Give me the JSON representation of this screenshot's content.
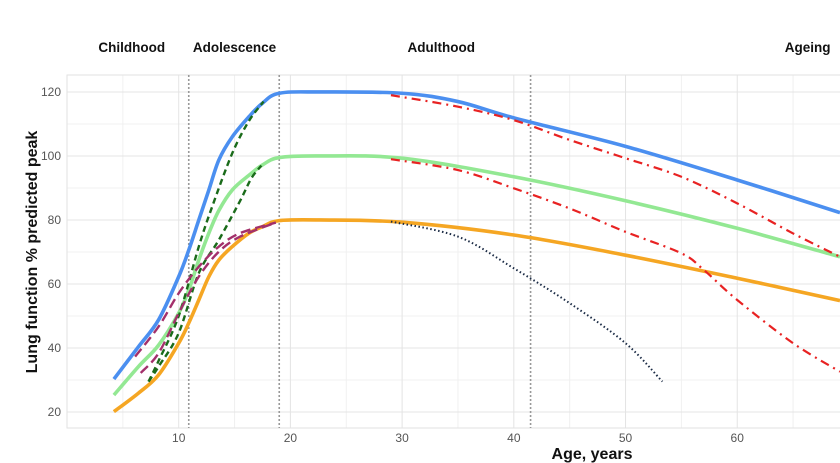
{
  "chart_data": {
    "type": "line",
    "title": "",
    "xlabel": "Age, years",
    "ylabel": "Lung function % predicted peak",
    "xlim": [
      0,
      69.2
    ],
    "ylim": [
      15,
      125.3
    ],
    "xticks": [
      10,
      20,
      30,
      40,
      50,
      60
    ],
    "yticks": [
      20,
      40,
      60,
      80,
      100,
      120
    ],
    "grid": true,
    "legend": "none",
    "phases": [
      {
        "label": "Childhood",
        "x": 5.8
      },
      {
        "label": "Adolescence",
        "x": 15
      },
      {
        "label": "Adulthood",
        "x": 33.5
      },
      {
        "label": "Ageing",
        "x": 66.3
      }
    ],
    "phase_boundaries": [
      10.9,
      19,
      41.5
    ],
    "series": [
      {
        "color": "#4b8ff0",
        "style": "solid",
        "x": [
          4.2,
          6.4,
          8.2,
          10,
          10.9,
          11.8,
          12.7,
          13.6,
          14.8,
          16.3,
          17.5,
          19,
          22.6,
          30,
          35,
          40,
          50,
          60,
          69.2
        ],
        "y": [
          30.3,
          40.4,
          48.8,
          62.3,
          70.6,
          80,
          89.4,
          98.8,
          106,
          112.3,
          116.5,
          119.6,
          120,
          119.6,
          117,
          111.9,
          103,
          92.5,
          82.3
        ]
      },
      {
        "color": "#93e893",
        "style": "solid",
        "x": [
          4.2,
          6.4,
          8.2,
          10,
          10.9,
          11.8,
          12.7,
          13.6,
          14.8,
          16.3,
          17.5,
          19,
          22.6,
          30,
          40,
          50,
          60,
          69.2
        ],
        "y": [
          25.3,
          34.2,
          40.9,
          50.9,
          58.1,
          67.5,
          75.9,
          83,
          89.4,
          94,
          97.2,
          99.5,
          100,
          99.3,
          93.5,
          86,
          77.4,
          68.5
        ]
      },
      {
        "color": "#f5a623",
        "style": "solid",
        "x": [
          4.2,
          6.4,
          8.2,
          10,
          10.9,
          11.8,
          12.7,
          13.6,
          14.8,
          16.3,
          17.5,
          19,
          22.6,
          30,
          40,
          50,
          60,
          69.2
        ],
        "y": [
          20.1,
          25.9,
          31.6,
          41.5,
          47.8,
          55,
          62.3,
          67.5,
          71.7,
          75.9,
          77.9,
          79.8,
          80,
          79.3,
          75.3,
          69,
          61.8,
          54.8
        ]
      },
      {
        "color": "#e82222",
        "style": "dashdot",
        "x": [
          29,
          35,
          40,
          45,
          50,
          55,
          60,
          65,
          69.2
        ],
        "y": [
          119,
          115.4,
          111.2,
          105,
          99.3,
          93.5,
          85.2,
          75.8,
          68.5
        ]
      },
      {
        "color": "#e82222",
        "style": "dashdot",
        "x": [
          29,
          35,
          40,
          45,
          50,
          55,
          57,
          60,
          65,
          69.2
        ],
        "y": [
          99,
          95.6,
          89.9,
          83.6,
          76.3,
          69.6,
          64.4,
          55,
          41.5,
          32.6
        ]
      },
      {
        "color": "#1b2b45",
        "style": "dotted",
        "x": [
          29,
          35,
          40,
          45,
          50,
          53.3
        ],
        "y": [
          79.5,
          74.8,
          64.9,
          54,
          41.5,
          29.5
        ]
      },
      {
        "color": "#1a6b1a",
        "style": "dashed",
        "x": [
          7.3,
          8.2,
          10,
          11.8,
          13,
          14.8,
          16.3,
          17.6
        ],
        "y": [
          29.5,
          36,
          50,
          71.7,
          84.2,
          100.9,
          111,
          117
        ]
      },
      {
        "color": "#1a6b1a",
        "style": "dashed",
        "x": [
          7.3,
          8.2,
          10,
          11.8,
          13.6,
          15.5,
          16.5,
          17.4
        ],
        "y": [
          29.5,
          34.2,
          44.7,
          63.4,
          73.8,
          86,
          93,
          97
        ]
      },
      {
        "color": "#a3306b",
        "style": "longdash",
        "x": [
          6.1,
          8.2,
          10,
          11.8,
          13.6,
          15.5,
          18.7
        ],
        "y": [
          37.3,
          46.7,
          57.1,
          65.4,
          71.7,
          75.9,
          79.2
        ]
      },
      {
        "color": "#a3306b",
        "style": "longdash",
        "x": [
          6.6,
          8.2,
          10,
          11.8,
          13.6,
          15.5,
          18.7
        ],
        "y": [
          32.2,
          38.4,
          50.9,
          62.3,
          70.1,
          74.8,
          79.2
        ]
      }
    ]
  }
}
